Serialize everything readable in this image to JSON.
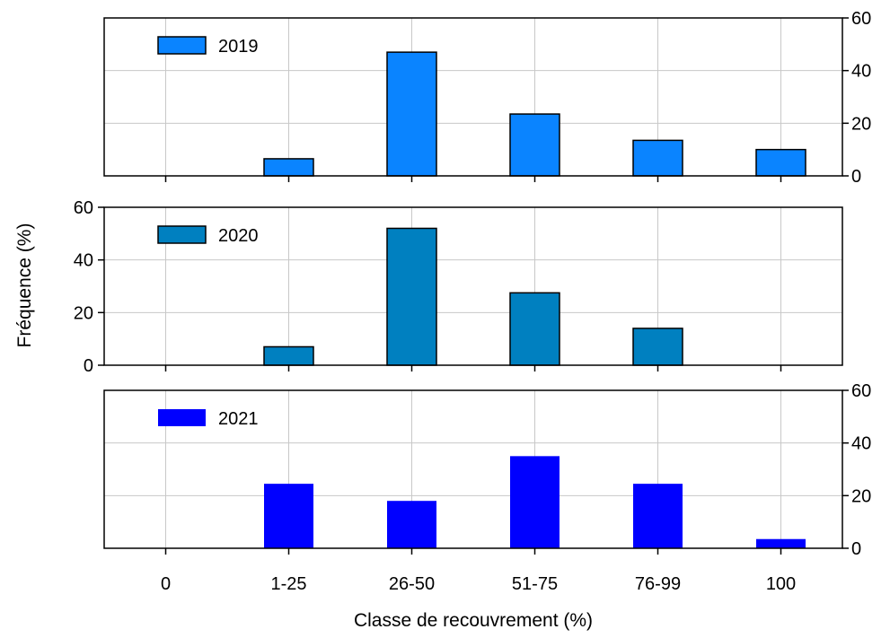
{
  "chart_data": {
    "type": "bar",
    "categories": [
      "0",
      "1-25",
      "26-50",
      "51-75",
      "76-99",
      "100"
    ],
    "xlabel": "Classe de recouvrement (%)",
    "ylabel": "Fréquence (%)",
    "ylim": [
      0,
      60
    ],
    "yticks": [
      0,
      20,
      40,
      60
    ],
    "grid": true,
    "panels": [
      {
        "series_name": "2019",
        "values": [
          0,
          6.5,
          47,
          23.5,
          13.5,
          10
        ],
        "color": "#0a84ff",
        "outlined": true,
        "tick_side": "right",
        "legend_position": "top-left"
      },
      {
        "series_name": "2020",
        "values": [
          0,
          7,
          52,
          27.5,
          14,
          0
        ],
        "color": "#0080c0",
        "outlined": true,
        "tick_side": "left",
        "legend_position": "top-left"
      },
      {
        "series_name": "2021",
        "values": [
          0,
          24.5,
          18,
          35,
          24.5,
          3.5
        ],
        "color": "#0000ff",
        "outlined": false,
        "tick_side": "right",
        "legend_position": "top-left"
      }
    ]
  }
}
